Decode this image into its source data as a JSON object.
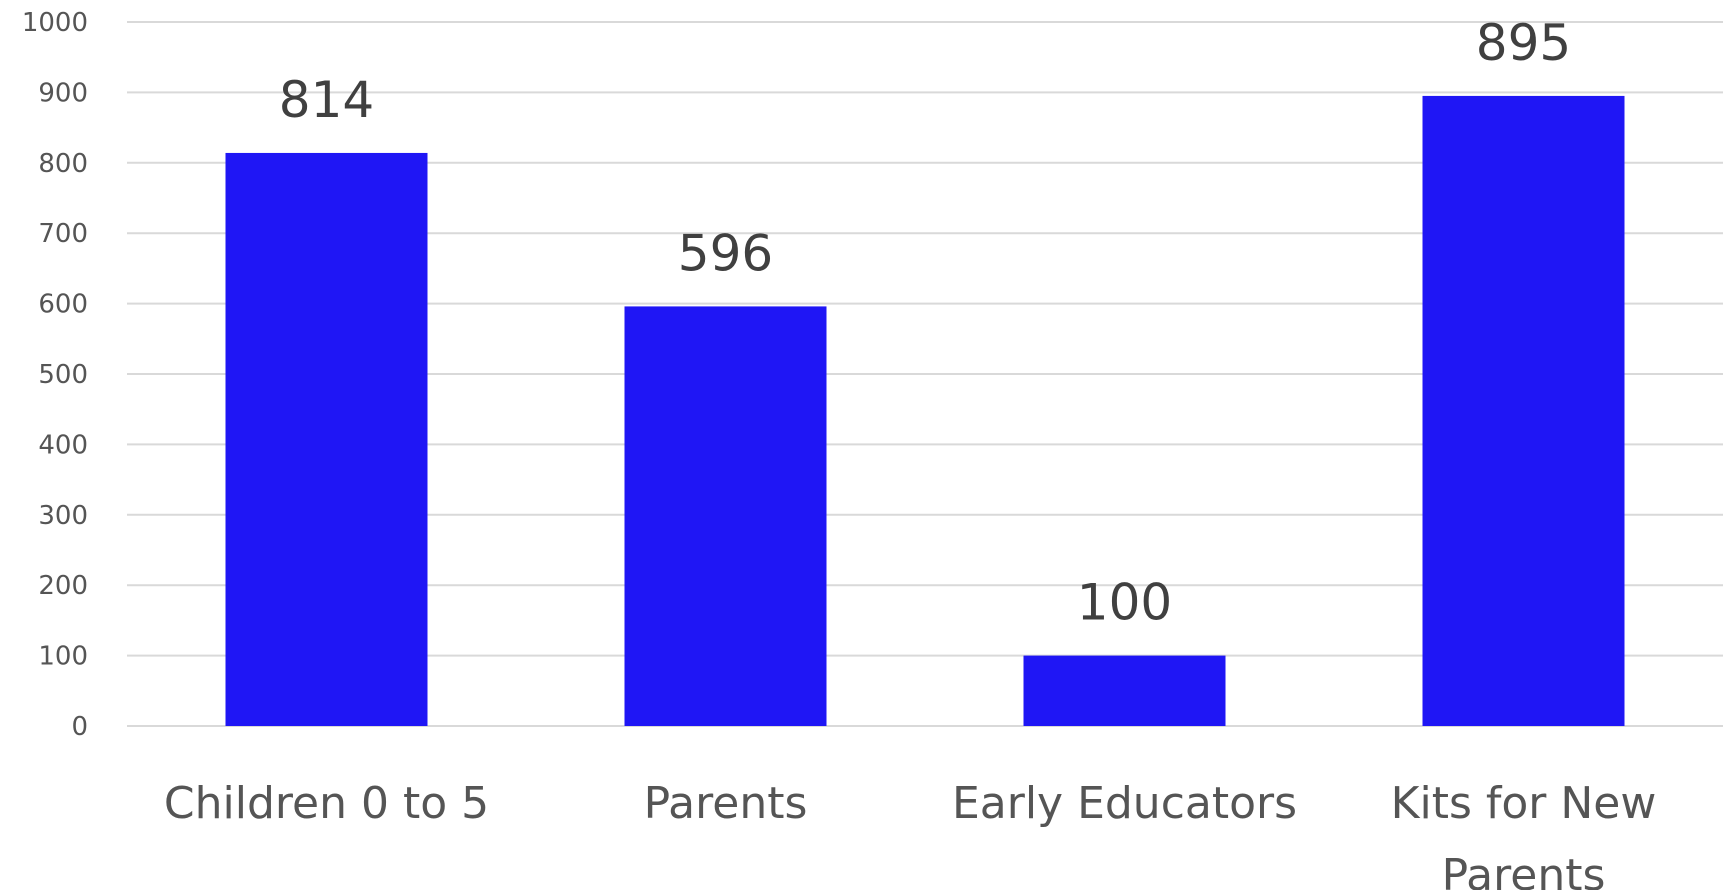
{
  "chart_data": {
    "type": "bar",
    "categories": [
      "Children 0 to 5",
      "Parents",
      "Early Educators",
      "Kits for New Parents"
    ],
    "values": [
      814,
      596,
      100,
      895
    ],
    "data_labels": [
      "814",
      "596",
      "100",
      "895"
    ],
    "ylim": [
      0,
      1000
    ],
    "yticks": [
      0,
      100,
      200,
      300,
      400,
      500,
      600,
      700,
      800,
      900,
      1000
    ],
    "ytick_labels": [
      "0",
      "100",
      "200",
      "300",
      "400",
      "500",
      "600",
      "700",
      "800",
      "900",
      "1000"
    ],
    "grid": true,
    "legend": "none",
    "bar_color": "#1f16f5",
    "gridline_color": "#d9d9d9",
    "text_color": "#555555",
    "data_label_color": "#404040"
  }
}
